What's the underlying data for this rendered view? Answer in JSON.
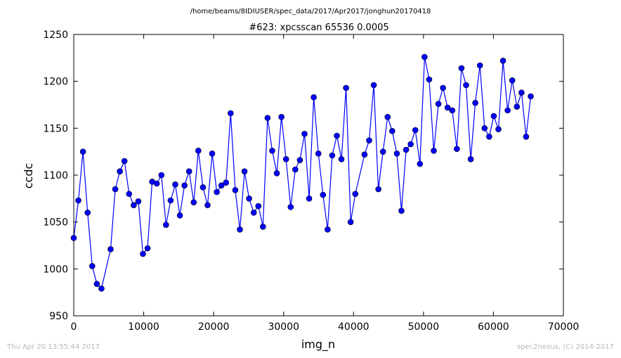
{
  "header": {
    "path": "/home/beams/8IDIUSER/spec_data/2017/Apr2017/jonghun20170418"
  },
  "footer": {
    "timestamp": "Thu Apr 20 13:55:44 2017",
    "credit": "spec2nexus, (C) 2014-2017"
  },
  "colors": {
    "series": "#0000ff",
    "marker_edge": "#000000",
    "footer_text": "#b8b8b8"
  },
  "chart_data": {
    "type": "line",
    "title": "#623: xpcsscan 65536 0.0005",
    "xlabel": "img_n",
    "ylabel": "ccdc",
    "xlim": [
      0,
      70000
    ],
    "ylim": [
      950,
      1250
    ],
    "xticks": [
      0,
      10000,
      20000,
      30000,
      40000,
      50000,
      60000,
      70000
    ],
    "yticks": [
      950,
      1000,
      1050,
      1100,
      1150,
      1200,
      1250
    ],
    "grid": false,
    "legend": false,
    "markers": true,
    "series": [
      {
        "x": [
          0,
          660,
          1320,
          1980,
          2640,
          3300,
          3960,
          5270,
          5930,
          6590,
          7250,
          7910,
          8570,
          9230,
          9890,
          10550,
          11210,
          11870,
          12530,
          13190,
          13850,
          14510,
          15170,
          15830,
          16490,
          17150,
          17810,
          18470,
          19130,
          19790,
          20450,
          21110,
          21770,
          22430,
          23090,
          23750,
          24410,
          25070,
          25730,
          26390,
          27050,
          27710,
          28370,
          29030,
          29690,
          30350,
          31010,
          31670,
          32330,
          32990,
          33650,
          34310,
          34970,
          35630,
          36290,
          36950,
          37610,
          38270,
          38930,
          39590,
          40250,
          41570,
          42230,
          42890,
          43550,
          44210,
          44870,
          45530,
          46190,
          46850,
          47510,
          48170,
          48830,
          49490,
          50150,
          50810,
          51470,
          52130,
          52790,
          53450,
          54110,
          54770,
          55430,
          56090,
          56750,
          57410,
          58070,
          58730,
          59390,
          60050,
          60710,
          61370,
          62030,
          62690,
          63350,
          64010,
          64670,
          65330
        ],
        "y": [
          1033,
          1073,
          1125,
          1060,
          1003,
          984,
          979,
          1021,
          1085,
          1104,
          1115,
          1080,
          1068,
          1072,
          1016,
          1022,
          1093,
          1091,
          1100,
          1047,
          1073,
          1090,
          1057,
          1089,
          1104,
          1071,
          1126,
          1087,
          1068,
          1123,
          1082,
          1089,
          1092,
          1166,
          1084,
          1042,
          1104,
          1075,
          1060,
          1067,
          1045,
          1161,
          1126,
          1102,
          1162,
          1117,
          1066,
          1106,
          1116,
          1144,
          1075,
          1183,
          1123,
          1079,
          1042,
          1121,
          1142,
          1117,
          1193,
          1050,
          1080,
          1122,
          1137,
          1196,
          1085,
          1125,
          1162,
          1147,
          1123,
          1062,
          1127,
          1133,
          1148,
          1112,
          1226,
          1202,
          1126,
          1176,
          1193,
          1172,
          1169,
          1128,
          1214,
          1196,
          1117,
          1177,
          1217,
          1150,
          1141,
          1163,
          1149,
          1222,
          1169,
          1201,
          1173,
          1188,
          1141,
          1184
        ]
      }
    ]
  }
}
